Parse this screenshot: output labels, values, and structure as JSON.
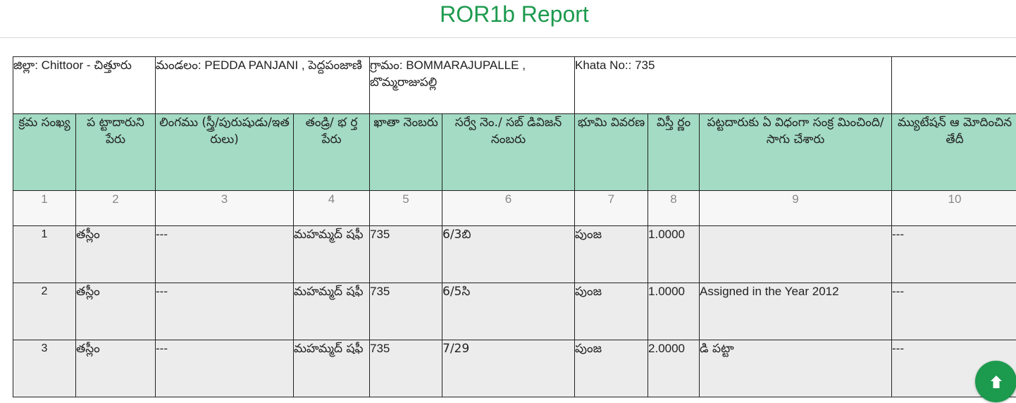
{
  "page": {
    "title": "ROR1b Report"
  },
  "info": {
    "district": "జిల్లా:   Chittoor - చిత్తూరు",
    "mandal": "మండలం:   PEDDA PANJANI , పెద్దపంజాణి",
    "village": "గ్రామం:   BOMMARAJUPALLE , బొమ్మరాజుపల్లి",
    "khata": "Khata No::   735",
    "blank": ""
  },
  "headers": [
    "క్రమ సంఖ్య",
    "ప ట్టాదారుని పేరు",
    "లింగము (స్త్రీ/పురుషుడు/ఇత రులు)",
    "తండ్రి/ భ ర్త పేరు",
    "ఖాతా నెంబరు",
    "సర్వే నెం./ సబ్ డివిజన్ నంబరు",
    "భూమి వివరణ",
    "విస్తీ ర్ణం",
    "పట్టదారుకు ఏ విధంగా సంక్ర మించింది/ సాగు చేశారు",
    "మ్యుటేషన్ ఆ మోదించిన తేదీ"
  ],
  "column_numbers": [
    "1",
    "2",
    "3",
    "4",
    "5",
    "6",
    "7",
    "8",
    "9",
    "10"
  ],
  "rows": [
    [
      "1",
      "తస్లీం",
      "---",
      "మహమ్మద్ షఫీ",
      "735",
      "6/3బి",
      "పుంజ",
      "1.0000",
      "",
      "---"
    ],
    [
      "2",
      "తస్లీం",
      "---",
      "మహమ్మద్ షఫీ",
      "735",
      "6/5సి",
      "పుంజ",
      "1.0000",
      "Assigned in the Year 2012",
      "---"
    ],
    [
      "3",
      "తస్లీం",
      "---",
      "మహమ్మద్ షఫీ",
      "735",
      "7/29",
      "పుంజ",
      "2.0000",
      "డి పట్టా",
      "---"
    ]
  ],
  "icons": {
    "scroll_top": "arrow-up-icon"
  },
  "colors": {
    "accent": "#1c9a4e",
    "header_bg": "#a3dbc4",
    "row_bg": "#ececec"
  }
}
